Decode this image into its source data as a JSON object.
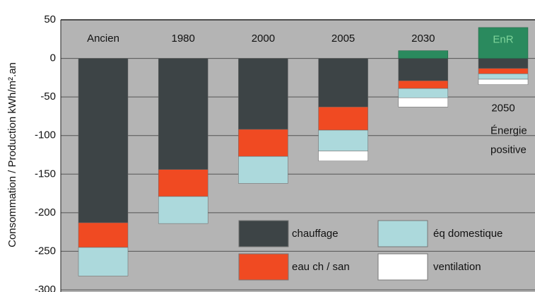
{
  "chart_data": {
    "type": "bar",
    "stacked": true,
    "ylabel": "Consommation / Production kWh/m².an",
    "categories": [
      "Ancien",
      "1980",
      "2000",
      "2005",
      "2030",
      "2050"
    ],
    "series": [
      {
        "name": "chauffage",
        "color": "#3d4446",
        "values": [
          -213,
          -144,
          -92,
          -63,
          -29,
          -13
        ]
      },
      {
        "name": "eau ch / san",
        "color": "#f04a22",
        "values": [
          -32,
          -35,
          -35,
          -30,
          -10,
          -7
        ]
      },
      {
        "name": "éq domestique",
        "color": "#acd9dc",
        "values": [
          -37,
          -35,
          -35,
          -27,
          -12,
          -7
        ]
      },
      {
        "name": "ventilation",
        "color": "#ffffff",
        "values": [
          null,
          null,
          null,
          -13,
          -12,
          -7
        ]
      }
    ],
    "enr": {
      "name": "EnR",
      "color": "#2a8a5e",
      "values": [
        null,
        null,
        null,
        null,
        10,
        40
      ]
    },
    "annotation": [
      "Énergie",
      "positive"
    ],
    "ylim": [
      -300,
      50
    ],
    "yticks": [
      50,
      0,
      -50,
      -100,
      -150,
      -200,
      -250,
      -300
    ],
    "grid": true
  }
}
